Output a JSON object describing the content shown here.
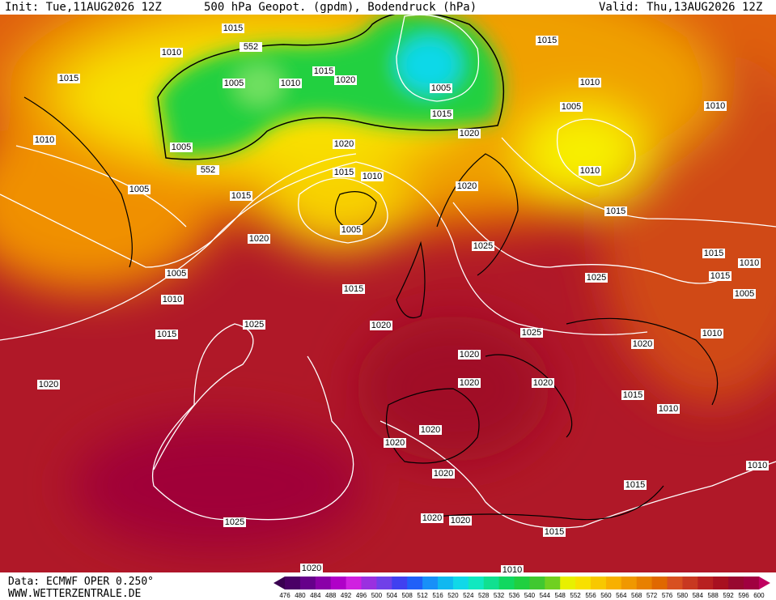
{
  "header": {
    "init": "Init: Tue,11AUG2026 12Z",
    "title": "500 hPa Geopot. (gpdm), Bodendruck (hPa)",
    "valid": "Valid: Thu,13AUG2026 12Z"
  },
  "isobar_labels": [
    1015,
    1010,
    552,
    1015,
    1005,
    1010,
    1015,
    1020,
    1005,
    1015,
    1015,
    1010,
    1005,
    1010,
    1010,
    1005,
    552,
    1020,
    1020,
    1015,
    1010,
    1010,
    1005,
    1015,
    1020,
    1015,
    1005,
    1020,
    1025,
    1015,
    1010,
    1005,
    1025,
    1015,
    1015,
    1010,
    1005,
    1025,
    1020,
    1015,
    1025,
    1010,
    1020,
    1020,
    1020,
    1020,
    1020,
    1015,
    1010,
    1020,
    1020,
    1010,
    1020,
    1015,
    1025,
    1020,
    1020,
    1015,
    1020,
    1010
  ],
  "footer": {
    "data": "Data: ECMWF OPER 0.250°",
    "site": "WWW.WETTERZENTRALE.DE"
  },
  "scale": {
    "labels": [
      476,
      480,
      484,
      488,
      492,
      496,
      500,
      504,
      508,
      512,
      516,
      520,
      524,
      528,
      532,
      536,
      540,
      544,
      548,
      552,
      556,
      560,
      564,
      568,
      572,
      576,
      580,
      584,
      588,
      592,
      596,
      600
    ],
    "colors": [
      "#3a0050",
      "#4a0066",
      "#66008a",
      "#8a00a8",
      "#b000c8",
      "#d020e0",
      "#9a30e0",
      "#7040e8",
      "#4040f0",
      "#2060f8",
      "#1890f8",
      "#10b8f0",
      "#10d8e8",
      "#10e8c0",
      "#10e090",
      "#10d860",
      "#20d040",
      "#40c830",
      "#70d020",
      "#e8f000",
      "#f8e000",
      "#f8c800",
      "#f8b000",
      "#f09800",
      "#e88000",
      "#e06800",
      "#d85020",
      "#c83820",
      "#b82020",
      "#a81020",
      "#980830",
      "#a00040",
      "#c00060"
    ]
  }
}
